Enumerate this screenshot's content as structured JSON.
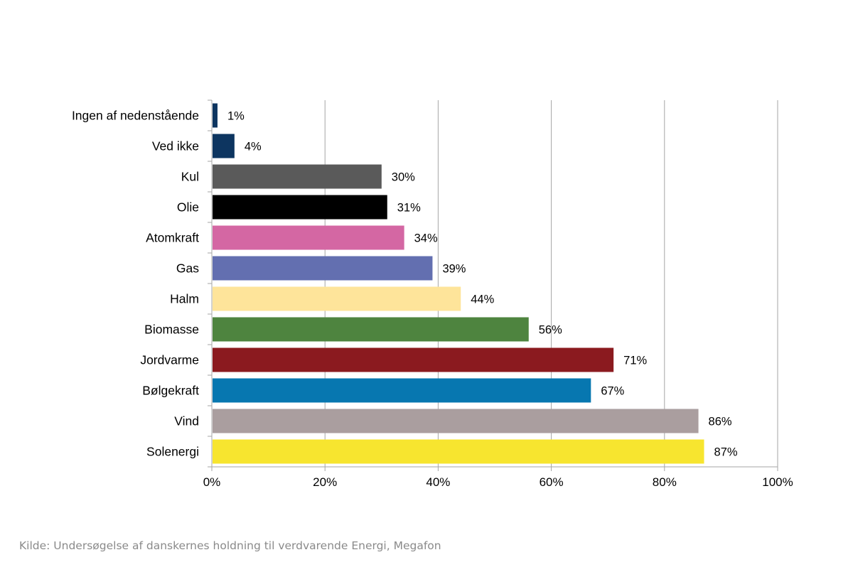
{
  "chart_data": {
    "type": "bar",
    "orientation": "horizontal",
    "categories": [
      "Ingen af nedenstående",
      "Ved ikke",
      "Kul",
      "Olie",
      "Atomkraft",
      "Gas",
      "Halm",
      "Biomasse",
      "Jordvarme",
      "Bølgekraft",
      "Vind",
      "Solenergi"
    ],
    "values": [
      1,
      4,
      30,
      31,
      34,
      39,
      44,
      56,
      71,
      67,
      86,
      87
    ],
    "value_labels": [
      "1%",
      "4%",
      "30%",
      "31%",
      "34%",
      "39%",
      "44%",
      "56%",
      "71%",
      "67%",
      "86%",
      "87%"
    ],
    "colors": [
      "#0d3560",
      "#0d3560",
      "#5a5a5a",
      "#000000",
      "#d467a3",
      "#636fb0",
      "#fee49a",
      "#4e843f",
      "#8b1a1f",
      "#0777b0",
      "#aa9e9f",
      "#f7e52f"
    ],
    "xlim": [
      0,
      100
    ],
    "x_ticks": [
      0,
      20,
      40,
      60,
      80,
      100
    ],
    "x_tick_labels": [
      "0%",
      "20%",
      "40%",
      "60%",
      "80%",
      "100%"
    ],
    "grid": "vertical",
    "legend": "none"
  },
  "source_text": "Kilde: Undersøgelse af danskernes holdning til verdvarende Energi, Megafon"
}
